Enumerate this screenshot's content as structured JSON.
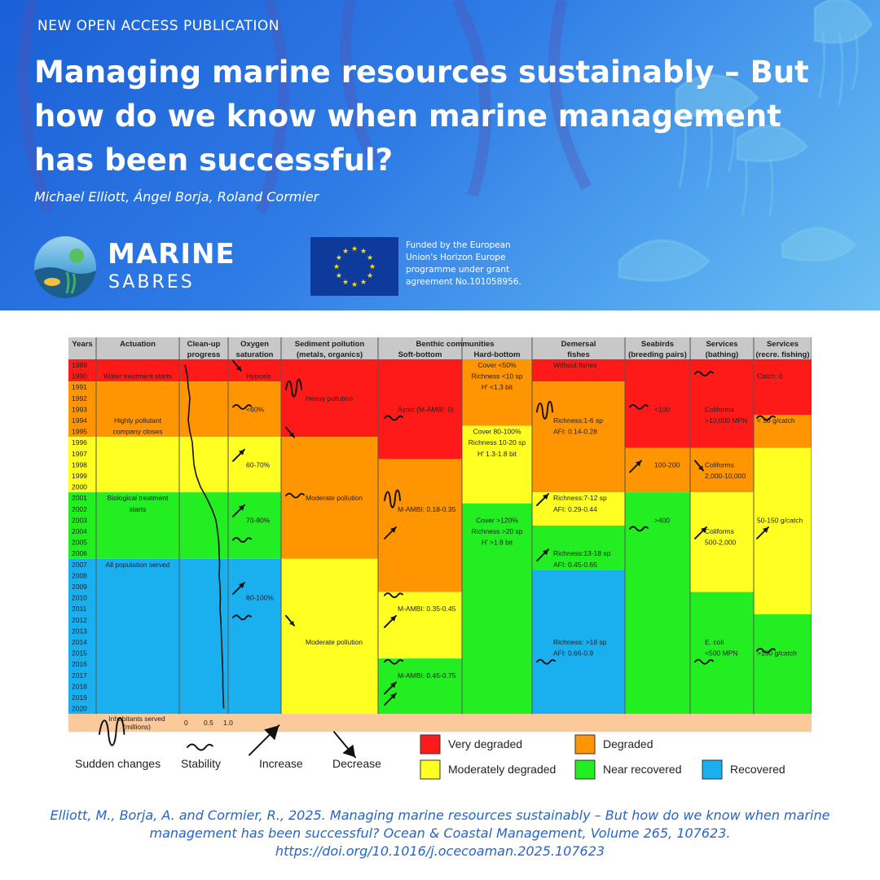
{
  "header": {
    "kicker": "NEW OPEN ACCESS PUBLICATION",
    "title": "Managing marine resources sustainably – But how do we know when marine management has been successful?",
    "authors": "Michael Elliott, Ángel Borja, Roland Cormier",
    "brand_line1": "MARINE",
    "brand_line2": "SABRES",
    "eu_funding": "Funded by the European Union's Horizon Europe programme under grant agreement No.101058956."
  },
  "colors": {
    "very_degraded": "#ff1a1a",
    "degraded": "#ff9500",
    "moderately_degraded": "#ffff22",
    "near_recovered": "#22ee22",
    "recovered": "#1ab0f0",
    "header_gray": "#c8c8c8",
    "footer_peach": "#fbc99a"
  },
  "chart_data": {
    "type": "table",
    "years": [
      "1989",
      "1990",
      "1991",
      "1992",
      "1993",
      "1994",
      "1995",
      "1996",
      "1997",
      "1998",
      "1999",
      "2000",
      "2001",
      "2002",
      "2003",
      "2004",
      "2005",
      "2006",
      "2007",
      "2008",
      "2009",
      "2010",
      "2011",
      "2012",
      "2013",
      "2014",
      "2015",
      "2016",
      "2017",
      "2018",
      "2019",
      "2020"
    ],
    "years_header": "Years",
    "columns": [
      {
        "title": "Actuation",
        "subtitle": "",
        "bands": [
          {
            "start": 1989,
            "end": 1990,
            "status": "very_degraded"
          },
          {
            "start": 1991,
            "end": 1995,
            "status": "degraded"
          },
          {
            "start": 1996,
            "end": 2000,
            "status": "moderately_degraded"
          },
          {
            "start": 2001,
            "end": 2006,
            "status": "near_recovered"
          },
          {
            "start": 2007,
            "end": 2020,
            "status": "recovered"
          }
        ],
        "labels": [
          {
            "text": "Water treatment starts",
            "year": 1990
          },
          {
            "text": "Highly pollutant",
            "year": 1994
          },
          {
            "text": "company closes",
            "year": 1995
          },
          {
            "text": "Biological treatment",
            "year": 2001
          },
          {
            "text": "starts",
            "year": 2002
          },
          {
            "text": "All population served",
            "year": 2007
          }
        ]
      },
      {
        "title": "Clean-up",
        "subtitle": "progress",
        "bands": [
          {
            "start": 1989,
            "end": 1990,
            "status": "very_degraded"
          },
          {
            "start": 1991,
            "end": 1995,
            "status": "degraded"
          },
          {
            "start": 1996,
            "end": 2000,
            "status": "moderately_degraded"
          },
          {
            "start": 2001,
            "end": 2006,
            "status": "near_recovered"
          },
          {
            "start": 2007,
            "end": 2020,
            "status": "recovered"
          }
        ],
        "labels": []
      },
      {
        "title": "Oxygen",
        "subtitle": "saturation",
        "bands": [
          {
            "start": 1989,
            "end": 1990,
            "status": "very_degraded"
          },
          {
            "start": 1991,
            "end": 1995,
            "status": "degraded"
          },
          {
            "start": 1996,
            "end": 2000,
            "status": "moderately_degraded"
          },
          {
            "start": 2001,
            "end": 2006,
            "status": "near_recovered"
          },
          {
            "start": 2007,
            "end": 2020,
            "status": "recovered"
          }
        ],
        "labels": [
          {
            "text": "Hypoxia",
            "year": 1990
          },
          {
            "text": "<60%",
            "year": 1993
          },
          {
            "text": "60-70%",
            "year": 1998
          },
          {
            "text": "70-80%",
            "year": 2003
          },
          {
            "text": "80-100%",
            "year": 2010
          }
        ]
      },
      {
        "title": "Sediment pollution",
        "subtitle": "(metals, organics)",
        "bands": [
          {
            "start": 1989,
            "end": 1995,
            "status": "very_degraded"
          },
          {
            "start": 1996,
            "end": 2006,
            "status": "degraded"
          },
          {
            "start": 2007,
            "end": 2020,
            "status": "moderately_degraded"
          }
        ],
        "labels": [
          {
            "text": "Heavy pollution",
            "year": 1992
          },
          {
            "text": "Moderate pollution",
            "year": 2001
          },
          {
            "text": "Moderate pollution",
            "year": 2014
          }
        ]
      },
      {
        "title": "Benthic communities",
        "subtitle": "Soft-bottom",
        "bands": [
          {
            "start": 1989,
            "end": 1997,
            "status": "very_degraded"
          },
          {
            "start": 1998,
            "end": 2009,
            "status": "degraded"
          },
          {
            "start": 2010,
            "end": 2015,
            "status": "moderately_degraded"
          },
          {
            "start": 2016,
            "end": 2020,
            "status": "near_recovered"
          }
        ],
        "labels": [
          {
            "text": "Azoic (M-AMBI: 0)",
            "year": 1993
          },
          {
            "text": "M-AMBI: 0.18-0.35",
            "year": 2002
          },
          {
            "text": "M-AMBI: 0.35-0.45",
            "year": 2011
          },
          {
            "text": "M-AMBI: 0.45-0.75",
            "year": 2017
          }
        ]
      },
      {
        "title": "",
        "subtitle": "Hard-bottom",
        "bands": [
          {
            "start": 1989,
            "end": 1994,
            "status": "degraded"
          },
          {
            "start": 1995,
            "end": 2001,
            "status": "moderately_degraded"
          },
          {
            "start": 2002,
            "end": 2020,
            "status": "near_recovered"
          }
        ],
        "labels": [
          {
            "text": "Cover <50%",
            "year": 1989
          },
          {
            "text": "Richness <10 sp",
            "year": 1990
          },
          {
            "text": "H' <1.3 bit",
            "year": 1991
          },
          {
            "text": "Cover 80-100%",
            "year": 1995
          },
          {
            "text": "Richness 10-20 sp",
            "year": 1996
          },
          {
            "text": "H' 1.3-1.8 bit",
            "year": 1997
          },
          {
            "text": "Cover >120%",
            "year": 2003
          },
          {
            "text": "Richness >20 sp",
            "year": 2004
          },
          {
            "text": "H' >1.8 bit",
            "year": 2005
          }
        ]
      },
      {
        "title": "Demersal",
        "subtitle": "fishes",
        "bands": [
          {
            "start": 1989,
            "end": 1990,
            "status": "very_degraded"
          },
          {
            "start": 1991,
            "end": 2000,
            "status": "degraded"
          },
          {
            "start": 2001,
            "end": 2003,
            "status": "moderately_degraded"
          },
          {
            "start": 2004,
            "end": 2007,
            "status": "near_recovered"
          },
          {
            "start": 2008,
            "end": 2020,
            "status": "recovered"
          }
        ],
        "labels": [
          {
            "text": "Without fishes",
            "year": 1989
          },
          {
            "text": "Richness:1-6 sp",
            "year": 1994
          },
          {
            "text": "AFI: 0.14-0.28",
            "year": 1995
          },
          {
            "text": "Richness:7-12 sp",
            "year": 2001
          },
          {
            "text": "AFI: 0.29-0.44",
            "year": 2002
          },
          {
            "text": "Richness:13-18 sp",
            "year": 2006
          },
          {
            "text": "AFI: 0.45-0.65",
            "year": 2007
          },
          {
            "text": "Richness: >18 sp",
            "year": 2014
          },
          {
            "text": "AFI: 0.66-0.9",
            "year": 2015
          }
        ]
      },
      {
        "title": "Seabirds",
        "subtitle": "(breeding pairs)",
        "bands": [
          {
            "start": 1989,
            "end": 1996,
            "status": "very_degraded"
          },
          {
            "start": 1997,
            "end": 2000,
            "status": "degraded"
          },
          {
            "start": 2001,
            "end": 2020,
            "status": "near_recovered"
          }
        ],
        "labels": [
          {
            "text": "<100",
            "year": 1993
          },
          {
            "text": "100-200",
            "year": 1998
          },
          {
            "text": ">400",
            "year": 2003
          }
        ]
      },
      {
        "title": "Services",
        "subtitle": "(bathing)",
        "bands": [
          {
            "start": 1989,
            "end": 1996,
            "status": "very_degraded"
          },
          {
            "start": 1997,
            "end": 2000,
            "status": "degraded"
          },
          {
            "start": 2001,
            "end": 2009,
            "status": "moderately_degraded"
          },
          {
            "start": 2010,
            "end": 2020,
            "status": "near_recovered"
          }
        ],
        "labels": [
          {
            "text": "Coliforms",
            "year": 1993
          },
          {
            "text": ">10,000 MPN",
            "year": 1994
          },
          {
            "text": "Coliforms",
            "year": 1998
          },
          {
            "text": "2,000-10,000",
            "year": 1999
          },
          {
            "text": "Coliforms",
            "year": 2004
          },
          {
            "text": "500-2,000",
            "year": 2005
          },
          {
            "text": "E. coli",
            "year": 2014
          },
          {
            "text": "<500 MPN",
            "year": 2015
          }
        ]
      },
      {
        "title": "Services",
        "subtitle": "(recre. fishing)",
        "bands": [
          {
            "start": 1989,
            "end": 1993,
            "status": "very_degraded"
          },
          {
            "start": 1994,
            "end": 1996,
            "status": "degraded"
          },
          {
            "start": 1997,
            "end": 2011,
            "status": "moderately_degraded"
          },
          {
            "start": 2012,
            "end": 2020,
            "status": "near_recovered"
          }
        ],
        "labels": [
          {
            "text": "Catch: 0",
            "year": 1990
          },
          {
            "text": "< 50 g/catch",
            "year": 1994
          },
          {
            "text": "50-150 g/catch",
            "year": 2003
          },
          {
            "text": ">150 g/catch",
            "year": 2015
          }
        ]
      }
    ],
    "clean_up_curve": {
      "axis_label": "Inhabitants served",
      "axis_unit": "(millions)",
      "ticks": [
        "0",
        "0.5",
        "1.0"
      ],
      "points": [
        [
          1989,
          0.02
        ],
        [
          1990,
          0.08
        ],
        [
          1991,
          0.1
        ],
        [
          1992,
          0.14
        ],
        [
          1993,
          0.12
        ],
        [
          1994,
          0.1
        ],
        [
          1995,
          0.14
        ],
        [
          1996,
          0.2
        ],
        [
          1997,
          0.22
        ],
        [
          1998,
          0.24
        ],
        [
          1999,
          0.3
        ],
        [
          2000,
          0.4
        ],
        [
          2001,
          0.55
        ],
        [
          2002,
          0.68
        ],
        [
          2003,
          0.78
        ],
        [
          2004,
          0.82
        ],
        [
          2005,
          0.85
        ],
        [
          2006,
          0.86
        ],
        [
          2007,
          0.87
        ],
        [
          2008,
          0.86
        ],
        [
          2009,
          0.88
        ],
        [
          2010,
          0.89
        ],
        [
          2011,
          0.88
        ],
        [
          2012,
          0.9
        ],
        [
          2013,
          0.91
        ],
        [
          2014,
          0.92
        ],
        [
          2015,
          0.93
        ],
        [
          2016,
          0.94
        ],
        [
          2017,
          0.95
        ],
        [
          2018,
          0.95
        ],
        [
          2019,
          0.96
        ],
        [
          2020,
          0.97
        ]
      ]
    },
    "trend_symbols": [
      {
        "column": 2,
        "year": 1989,
        "kind": "decrease"
      },
      {
        "column": 2,
        "year": 1993,
        "kind": "stability"
      },
      {
        "column": 2,
        "year": 1997,
        "kind": "increase"
      },
      {
        "column": 2,
        "year": 2002,
        "kind": "increase"
      },
      {
        "column": 2,
        "year": 2005,
        "kind": "stability"
      },
      {
        "column": 2,
        "year": 2009,
        "kind": "increase"
      },
      {
        "column": 2,
        "year": 2012,
        "kind": "stability"
      },
      {
        "column": 3,
        "year": 1991,
        "kind": "sudden"
      },
      {
        "column": 3,
        "year": 1995,
        "kind": "decrease"
      },
      {
        "column": 3,
        "year": 2001,
        "kind": "stability"
      },
      {
        "column": 3,
        "year": 2012,
        "kind": "decrease"
      },
      {
        "column": 4,
        "year": 1994,
        "kind": "stability"
      },
      {
        "column": 4,
        "year": 2001,
        "kind": "sudden"
      },
      {
        "column": 4,
        "year": 2004,
        "kind": "increase"
      },
      {
        "column": 4,
        "year": 2010,
        "kind": "stability"
      },
      {
        "column": 4,
        "year": 2012,
        "kind": "increase"
      },
      {
        "column": 4,
        "year": 2016,
        "kind": "stability"
      },
      {
        "column": 4,
        "year": 2018,
        "kind": "increase"
      },
      {
        "column": 4,
        "year": 2019,
        "kind": "increase"
      },
      {
        "column": 6,
        "year": 1993,
        "kind": "sudden"
      },
      {
        "column": 6,
        "year": 2001,
        "kind": "increase"
      },
      {
        "column": 6,
        "year": 2006,
        "kind": "increase"
      },
      {
        "column": 6,
        "year": 2016,
        "kind": "stability"
      },
      {
        "column": 7,
        "year": 1993,
        "kind": "stability"
      },
      {
        "column": 7,
        "year": 1998,
        "kind": "increase"
      },
      {
        "column": 7,
        "year": 2004,
        "kind": "stability"
      },
      {
        "column": 8,
        "year": 1990,
        "kind": "stability"
      },
      {
        "column": 8,
        "year": 1998,
        "kind": "decrease"
      },
      {
        "column": 8,
        "year": 2004,
        "kind": "increase"
      },
      {
        "column": 8,
        "year": 2016,
        "kind": "stability"
      },
      {
        "column": 9,
        "year": 1994,
        "kind": "stability"
      },
      {
        "column": 9,
        "year": 2004,
        "kind": "increase"
      },
      {
        "column": 9,
        "year": 2015,
        "kind": "stability"
      }
    ],
    "symbol_legend": [
      {
        "kind": "sudden",
        "label": "Sudden changes"
      },
      {
        "kind": "stability",
        "label": "Stability"
      },
      {
        "kind": "increase",
        "label": "Increase"
      },
      {
        "kind": "decrease",
        "label": "Decrease"
      }
    ],
    "status_legend": [
      {
        "status": "very_degraded",
        "label": "Very degraded"
      },
      {
        "status": "degraded",
        "label": "Degraded"
      },
      {
        "status": "moderately_degraded",
        "label": "Moderately degraded"
      },
      {
        "status": "near_recovered",
        "label": "Near recovered"
      },
      {
        "status": "recovered",
        "label": "Recovered"
      }
    ]
  },
  "citation": {
    "text": "Elliott, M., Borja, A. and Cormier, R., 2025. Managing marine resources sustainably – But how do we know when marine management has been successful? Ocean & Coastal Management, Volume 265, 107623.",
    "doi": "https://doi.org/10.1016/j.ocecoaman.2025.107623"
  }
}
